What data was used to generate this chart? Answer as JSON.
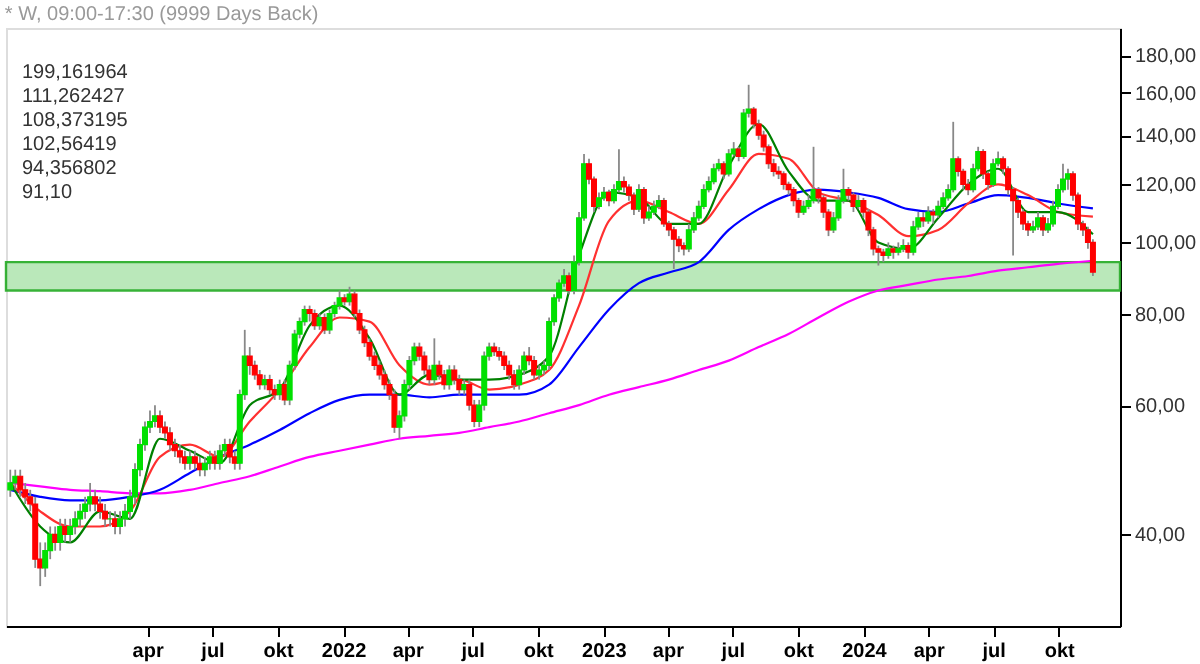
{
  "chart_data": {
    "type": "candlestick",
    "title": "* W, 09:00-17:30 (9999 Days Back)",
    "log": true,
    "grid": false,
    "ylim": [
      30,
      196
    ],
    "yticks": [
      {
        "value": 40,
        "label": "40,00"
      },
      {
        "value": 60,
        "label": "60,00"
      },
      {
        "value": 80,
        "label": "80,00"
      },
      {
        "value": 100,
        "label": "100,00"
      },
      {
        "value": 120,
        "label": "120,00"
      },
      {
        "value": 140,
        "label": "140,00"
      },
      {
        "value": 160,
        "label": "160,00"
      },
      {
        "value": 180,
        "label": "180,00"
      }
    ],
    "xlim": [
      "2020-09-15",
      "2024-12-26"
    ],
    "xticks": [
      {
        "value": "2021-04-01",
        "label": "apr"
      },
      {
        "value": "2021-07-01",
        "label": "jul"
      },
      {
        "value": "2021-10-01",
        "label": "okt"
      },
      {
        "value": "2022-01-01",
        "label": "2022"
      },
      {
        "value": "2022-04-01",
        "label": "apr"
      },
      {
        "value": "2022-07-01",
        "label": "jul"
      },
      {
        "value": "2022-10-01",
        "label": "okt"
      },
      {
        "value": "2023-01-01",
        "label": "2023"
      },
      {
        "value": "2023-04-01",
        "label": "apr"
      },
      {
        "value": "2023-07-01",
        "label": "jul"
      },
      {
        "value": "2023-10-01",
        "label": "okt"
      },
      {
        "value": "2024-01-01",
        "label": "2024"
      },
      {
        "value": "2024-04-01",
        "label": "apr"
      },
      {
        "value": "2024-07-01",
        "label": "jul"
      },
      {
        "value": "2024-10-01",
        "label": "okt"
      }
    ],
    "colors": [
      "#00e000",
      "#00e000",
      "#ff0000",
      "#ff0000",
      "#ff0000",
      "#ff0000",
      "#ff0000",
      "#00e000",
      "#00e000",
      "#ff0000",
      "#00e000",
      "#ff0000",
      "#00e000",
      "#00e000",
      "#00e000",
      "#00e000",
      "#00e000",
      "#ff0000",
      "#ff0000",
      "#ff0000",
      "#00e000",
      "#ff0000",
      "#00e000",
      "#00e000",
      "#00e000",
      "#00e000",
      "#00e000",
      "#00e000",
      "#00e000",
      "#00e000",
      "#ff0000",
      "#ff0000",
      "#ff0000",
      "#ff0000",
      "#ff0000",
      "#ff0000",
      "#00e000",
      "#ff0000",
      "#ff0000",
      "#00e000",
      "#00e000",
      "#ff0000",
      "#00e000",
      "#00e000",
      "#ff0000",
      "#ff0000",
      "#00e000",
      "#00e000",
      "#ff0000",
      "#ff0000",
      "#ff0000",
      "#00e000",
      "#ff0000",
      "#ff0000",
      "#00e000",
      "#ff0000",
      "#00e000",
      "#00e000",
      "#00e000",
      "#00e000",
      "#ff0000",
      "#ff0000",
      "#00e000",
      "#ff0000",
      "#00e000",
      "#00e000",
      "#00e000",
      "#ff0000",
      "#00e000",
      "#ff0000",
      "#ff0000",
      "#ff0000",
      "#ff0000",
      "#ff0000",
      "#ff0000",
      "#ff0000",
      "#ff0000",
      "#ff0000",
      "#00e000",
      "#00e000",
      "#00e000",
      "#00e000",
      "#ff0000",
      "#ff0000",
      "#ff0000",
      "#00e000",
      "#ff0000",
      "#ff0000",
      "#00e000",
      "#ff0000",
      "#ff0000",
      "#00e000",
      "#ff0000",
      "#ff0000",
      "#00e000",
      "#00e000",
      "#00e000",
      "#ff0000",
      "#ff0000",
      "#ff0000",
      "#ff0000",
      "#ff0000",
      "#00e000",
      "#00e000",
      "#ff0000",
      "#ff0000",
      "#00e000",
      "#00e000",
      "#00e000",
      "#00e000",
      "#00e000",
      "#00e000",
      "#ff0000",
      "#00e000",
      "#00e000",
      "#00e000",
      "#ff0000",
      "#ff0000",
      "#00e000",
      "#00e000",
      "#ff0000",
      "#00e000",
      "#00e000",
      "#ff0000",
      "#ff0000",
      "#ff0000",
      "#00e000",
      "#ff0000",
      "#00e000",
      "#00e000",
      "#00e000",
      "#ff0000",
      "#ff0000",
      "#ff0000",
      "#ff0000",
      "#ff0000",
      "#00e000",
      "#00e000",
      "#00e000",
      "#00e000",
      "#00e000",
      "#00e000",
      "#00e000",
      "#ff0000",
      "#00e000",
      "#00e000",
      "#ff0000",
      "#00e000",
      "#00e000",
      "#ff0000",
      "#ff0000",
      "#ff0000",
      "#ff0000",
      "#ff0000",
      "#ff0000",
      "#ff0000",
      "#ff0000",
      "#ff0000",
      "#ff0000",
      "#00e000",
      "#00e000",
      "#00e000",
      "#ff0000",
      "#ff0000",
      "#ff0000",
      "#00e000",
      "#00e000",
      "#00e000",
      "#ff0000",
      "#ff0000",
      "#00e000",
      "#ff0000",
      "#ff0000",
      "#ff0000",
      "#ff0000",
      "#ff0000",
      "#00e000",
      "#ff0000",
      "#00e000",
      "#00e000",
      "#ff0000",
      "#00e000",
      "#00e000",
      "#ff0000",
      "#00e000",
      "#ff0000",
      "#00e000",
      "#00e000",
      "#00e000",
      "#00e000",
      "#ff0000",
      "#ff0000",
      "#ff0000",
      "#00e000",
      "#00e000",
      "#ff0000",
      "#ff0000",
      "#00e000",
      "#00e000",
      "#ff0000",
      "#ff0000",
      "#ff0000",
      "#ff0000",
      "#ff0000",
      "#ff0000",
      "#00e000",
      "#00e000",
      "#ff0000",
      "#00e000",
      "#00e000",
      "#00e000",
      "#00e000",
      "#00e000",
      "#ff0000",
      "#ff0000",
      "#ff0000",
      "#ff0000",
      "#ff0000"
    ],
    "bands": [
      {
        "axis": "y",
        "from": 86,
        "to": 94,
        "color": "#b3e6b3"
      }
    ],
    "annotations": [
      "199,161964",
      "111,262427",
      "108,373195",
      "102,56419",
      "94,356802",
      "91,10"
    ],
    "x": [
      "2020-09-21",
      "2020-09-28",
      "2020-10-05",
      "2020-10-12",
      "2020-10-19",
      "2020-10-26",
      "2020-11-02",
      "2020-11-09",
      "2020-11-16",
      "2020-11-23",
      "2020-11-30",
      "2020-12-07",
      "2020-12-14",
      "2020-12-21",
      "2020-12-28",
      "2021-01-04",
      "2021-01-11",
      "2021-01-18",
      "2021-01-25",
      "2021-02-01",
      "2021-02-08",
      "2021-02-15",
      "2021-02-22",
      "2021-03-01",
      "2021-03-08",
      "2021-03-15",
      "2021-03-22",
      "2021-03-29",
      "2021-04-05",
      "2021-04-12",
      "2021-04-19",
      "2021-04-26",
      "2021-05-03",
      "2021-05-10",
      "2021-05-17",
      "2021-05-24",
      "2021-05-31",
      "2021-06-07",
      "2021-06-14",
      "2021-06-21",
      "2021-06-28",
      "2021-07-05",
      "2021-07-12",
      "2021-07-19",
      "2021-07-26",
      "2021-08-02",
      "2021-08-09",
      "2021-08-16",
      "2021-08-23",
      "2021-08-30",
      "2021-09-06",
      "2021-09-13",
      "2021-09-20",
      "2021-09-27",
      "2021-10-04",
      "2021-10-11",
      "2021-10-18",
      "2021-10-25",
      "2021-11-01",
      "2021-11-08",
      "2021-11-15",
      "2021-11-22",
      "2021-11-29",
      "2021-12-06",
      "2021-12-13",
      "2021-12-20",
      "2021-12-27",
      "2022-01-03",
      "2022-01-10",
      "2022-01-17",
      "2022-01-24",
      "2022-01-31",
      "2022-02-07",
      "2022-02-14",
      "2022-02-21",
      "2022-02-28",
      "2022-03-07",
      "2022-03-14",
      "2022-03-21",
      "2022-03-28",
      "2022-04-04",
      "2022-04-11",
      "2022-04-18",
      "2022-04-25",
      "2022-05-02",
      "2022-05-09",
      "2022-05-16",
      "2022-05-23",
      "2022-05-30",
      "2022-06-06",
      "2022-06-13",
      "2022-06-20",
      "2022-06-27",
      "2022-07-04",
      "2022-07-11",
      "2022-07-18",
      "2022-07-25",
      "2022-08-01",
      "2022-08-08",
      "2022-08-15",
      "2022-08-22",
      "2022-08-29",
      "2022-09-05",
      "2022-09-12",
      "2022-09-19",
      "2022-09-26",
      "2022-10-03",
      "2022-10-10",
      "2022-10-17",
      "2022-10-24",
      "2022-10-31",
      "2022-11-07",
      "2022-11-14",
      "2022-11-21",
      "2022-11-28",
      "2022-12-05",
      "2022-12-12",
      "2022-12-19",
      "2022-12-26",
      "2023-01-02",
      "2023-01-09",
      "2023-01-16",
      "2023-01-23",
      "2023-01-30",
      "2023-02-06",
      "2023-02-13",
      "2023-02-20",
      "2023-02-27",
      "2023-03-06",
      "2023-03-13",
      "2023-03-20",
      "2023-03-27",
      "2023-04-03",
      "2023-04-10",
      "2023-04-17",
      "2023-04-24",
      "2023-05-01",
      "2023-05-08",
      "2023-05-15",
      "2023-05-22",
      "2023-05-29",
      "2023-06-05",
      "2023-06-12",
      "2023-06-19",
      "2023-06-26",
      "2023-07-03",
      "2023-07-10",
      "2023-07-17",
      "2023-07-24",
      "2023-07-31",
      "2023-08-07",
      "2023-08-14",
      "2023-08-21",
      "2023-08-28",
      "2023-09-04",
      "2023-09-11",
      "2023-09-18",
      "2023-09-25",
      "2023-10-02",
      "2023-10-09",
      "2023-10-16",
      "2023-10-23",
      "2023-10-30",
      "2023-11-06",
      "2023-11-13",
      "2023-11-20",
      "2023-11-27",
      "2023-12-04",
      "2023-12-11",
      "2023-12-18",
      "2023-12-25",
      "2024-01-01",
      "2024-01-08",
      "2024-01-15",
      "2024-01-22",
      "2024-01-29",
      "2024-02-05",
      "2024-02-12",
      "2024-02-19",
      "2024-02-26",
      "2024-03-04",
      "2024-03-11",
      "2024-03-18",
      "2024-03-25",
      "2024-04-01",
      "2024-04-08",
      "2024-04-15",
      "2024-04-22",
      "2024-04-29",
      "2024-05-06",
      "2024-05-13",
      "2024-05-20",
      "2024-05-27",
      "2024-06-03",
      "2024-06-10",
      "2024-06-17",
      "2024-06-24",
      "2024-07-01",
      "2024-07-08",
      "2024-07-15",
      "2024-07-22",
      "2024-07-29",
      "2024-08-05",
      "2024-08-12",
      "2024-08-19",
      "2024-08-26",
      "2024-09-02",
      "2024-09-09",
      "2024-09-16",
      "2024-09-23",
      "2024-09-30",
      "2024-10-07",
      "2024-10-14",
      "2024-10-21",
      "2024-10-28",
      "2024-11-04",
      "2024-11-11",
      "2024-11-18"
    ],
    "ohlc": [
      [
        46,
        49,
        45,
        47
      ],
      [
        47,
        49,
        46,
        48
      ],
      [
        48,
        49,
        45,
        46
      ],
      [
        46,
        47,
        44,
        45
      ],
      [
        45,
        46,
        43,
        44
      ],
      [
        44,
        45,
        36,
        37
      ],
      [
        37,
        39,
        34,
        36
      ],
      [
        36,
        39,
        35,
        38
      ],
      [
        38,
        41,
        37,
        40
      ],
      [
        40,
        41,
        38,
        39
      ],
      [
        39,
        42,
        38,
        41
      ],
      [
        41,
        42,
        39,
        40
      ],
      [
        40,
        42,
        39,
        41
      ],
      [
        41,
        43,
        40,
        42
      ],
      [
        42,
        44,
        41,
        43
      ],
      [
        43,
        45,
        42,
        44
      ],
      [
        44,
        47,
        43,
        45
      ],
      [
        45,
        46,
        43,
        44
      ],
      [
        44,
        45,
        42,
        43
      ],
      [
        43,
        44,
        41,
        42
      ],
      [
        42,
        43,
        41,
        42
      ],
      [
        42,
        43,
        40,
        41
      ],
      [
        41,
        43,
        40,
        42
      ],
      [
        42,
        44,
        41,
        43
      ],
      [
        43,
        46,
        42,
        45
      ],
      [
        45,
        50,
        44,
        49
      ],
      [
        49,
        54,
        48,
        53
      ],
      [
        53,
        57,
        52,
        56
      ],
      [
        56,
        59,
        55,
        57
      ],
      [
        57,
        60,
        56,
        58
      ],
      [
        58,
        59,
        55,
        56
      ],
      [
        56,
        57,
        54,
        55
      ],
      [
        55,
        56,
        52,
        53
      ],
      [
        53,
        54,
        51,
        52
      ],
      [
        52,
        53,
        50,
        51
      ],
      [
        51,
        52,
        49,
        50
      ],
      [
        50,
        52,
        49,
        51
      ],
      [
        51,
        52,
        49,
        50
      ],
      [
        50,
        51,
        48,
        49
      ],
      [
        49,
        51,
        48,
        50
      ],
      [
        50,
        52,
        49,
        51
      ],
      [
        51,
        52,
        49,
        50
      ],
      [
        50,
        53,
        49,
        52
      ],
      [
        52,
        54,
        51,
        53
      ],
      [
        53,
        54,
        50,
        51
      ],
      [
        51,
        52,
        49,
        50
      ],
      [
        50,
        63,
        49,
        62
      ],
      [
        62,
        76,
        61,
        70
      ],
      [
        70,
        72,
        66,
        68
      ],
      [
        68,
        69,
        65,
        66
      ],
      [
        66,
        67,
        63,
        64
      ],
      [
        64,
        66,
        63,
        65
      ],
      [
        65,
        66,
        62,
        63
      ],
      [
        63,
        64,
        61,
        62
      ],
      [
        62,
        65,
        61,
        64
      ],
      [
        64,
        65,
        60,
        61
      ],
      [
        61,
        69,
        60,
        68
      ],
      [
        68,
        76,
        67,
        75
      ],
      [
        75,
        79,
        74,
        78
      ],
      [
        78,
        82,
        77,
        81
      ],
      [
        81,
        82,
        78,
        80
      ],
      [
        80,
        81,
        76,
        77
      ],
      [
        77,
        80,
        76,
        79
      ],
      [
        79,
        80,
        75,
        76
      ],
      [
        76,
        81,
        75,
        80
      ],
      [
        80,
        83,
        79,
        82
      ],
      [
        82,
        86,
        81,
        84
      ],
      [
        84,
        85,
        82,
        83
      ],
      [
        83,
        87,
        82,
        85
      ],
      [
        85,
        86,
        79,
        80
      ],
      [
        80,
        81,
        75,
        76
      ],
      [
        76,
        77,
        72,
        73
      ],
      [
        73,
        74,
        69,
        70
      ],
      [
        70,
        71,
        67,
        68
      ],
      [
        68,
        69,
        65,
        66
      ],
      [
        66,
        67,
        63,
        64
      ],
      [
        64,
        65,
        61,
        62
      ],
      [
        62,
        63,
        55,
        56
      ],
      [
        56,
        59,
        54,
        58
      ],
      [
        58,
        65,
        57,
        64
      ],
      [
        64,
        70,
        63,
        69
      ],
      [
        69,
        73,
        68,
        72
      ],
      [
        72,
        73,
        69,
        70
      ],
      [
        70,
        71,
        66,
        67
      ],
      [
        67,
        68,
        64,
        65
      ],
      [
        65,
        74,
        64,
        68
      ],
      [
        68,
        69,
        65,
        66
      ],
      [
        66,
        67,
        63,
        64
      ],
      [
        64,
        68,
        63,
        67
      ],
      [
        67,
        68,
        64,
        65
      ],
      [
        65,
        66,
        62,
        63
      ],
      [
        63,
        65,
        62,
        64
      ],
      [
        64,
        65,
        59,
        60
      ],
      [
        60,
        61,
        56,
        57
      ],
      [
        57,
        61,
        56,
        60
      ],
      [
        60,
        71,
        59,
        70
      ],
      [
        70,
        73,
        69,
        72
      ],
      [
        72,
        73,
        70,
        71
      ],
      [
        71,
        72,
        69,
        70
      ],
      [
        70,
        71,
        67,
        68
      ],
      [
        68,
        69,
        65,
        66
      ],
      [
        66,
        67,
        63,
        64
      ],
      [
        64,
        68,
        63,
        67
      ],
      [
        67,
        71,
        66,
        70
      ],
      [
        70,
        72,
        68,
        69
      ],
      [
        69,
        70,
        65,
        66
      ],
      [
        66,
        68,
        65,
        67
      ],
      [
        67,
        69,
        66,
        68
      ],
      [
        68,
        79,
        67,
        78
      ],
      [
        78,
        85,
        77,
        84
      ],
      [
        84,
        89,
        83,
        88
      ],
      [
        88,
        92,
        87,
        90
      ],
      [
        90,
        91,
        85,
        86
      ],
      [
        86,
        96,
        85,
        94
      ],
      [
        94,
        110,
        93,
        108
      ],
      [
        108,
        132,
        107,
        128
      ],
      [
        128,
        130,
        120,
        122
      ],
      [
        122,
        123,
        110,
        112
      ],
      [
        112,
        117,
        111,
        115
      ],
      [
        115,
        119,
        114,
        117
      ],
      [
        117,
        118,
        112,
        114
      ],
      [
        114,
        120,
        113,
        118
      ],
      [
        118,
        134,
        117,
        121
      ],
      [
        121,
        123,
        117,
        119
      ],
      [
        119,
        120,
        114,
        116
      ],
      [
        116,
        117,
        109,
        111
      ],
      [
        111,
        120,
        110,
        118
      ],
      [
        118,
        119,
        106,
        108
      ],
      [
        108,
        112,
        107,
        110
      ],
      [
        110,
        114,
        109,
        112
      ],
      [
        112,
        116,
        111,
        114
      ],
      [
        114,
        115,
        105,
        106
      ],
      [
        106,
        107,
        102,
        104
      ],
      [
        104,
        105,
        92,
        101
      ],
      [
        101,
        102,
        97,
        99
      ],
      [
        99,
        100,
        96,
        98
      ],
      [
        98,
        106,
        97,
        104
      ],
      [
        104,
        110,
        103,
        108
      ],
      [
        108,
        114,
        107,
        112
      ],
      [
        112,
        120,
        111,
        118
      ],
      [
        118,
        123,
        117,
        121
      ],
      [
        121,
        128,
        120,
        126
      ],
      [
        126,
        130,
        125,
        128
      ],
      [
        128,
        129,
        122,
        124
      ],
      [
        124,
        134,
        123,
        132
      ],
      [
        132,
        137,
        131,
        134
      ],
      [
        134,
        135,
        129,
        131
      ],
      [
        131,
        152,
        130,
        150
      ],
      [
        150,
        164,
        148,
        152
      ],
      [
        152,
        153,
        143,
        145
      ],
      [
        145,
        147,
        138,
        140
      ],
      [
        140,
        142,
        133,
        135
      ],
      [
        135,
        136,
        126,
        128
      ],
      [
        128,
        130,
        123,
        125
      ],
      [
        125,
        127,
        122,
        124
      ],
      [
        124,
        125,
        118,
        120
      ],
      [
        120,
        121,
        116,
        118
      ],
      [
        118,
        119,
        112,
        114
      ],
      [
        114,
        115,
        108,
        110
      ],
      [
        110,
        114,
        109,
        112
      ],
      [
        112,
        116,
        111,
        114
      ],
      [
        114,
        135,
        113,
        118
      ],
      [
        118,
        119,
        113,
        115
      ],
      [
        115,
        116,
        108,
        110
      ],
      [
        110,
        111,
        102,
        104
      ],
      [
        104,
        110,
        103,
        108
      ],
      [
        108,
        116,
        107,
        114
      ],
      [
        114,
        126,
        113,
        118
      ],
      [
        118,
        119,
        114,
        116
      ],
      [
        116,
        117,
        110,
        112
      ],
      [
        112,
        116,
        111,
        114
      ],
      [
        114,
        115,
        108,
        110
      ],
      [
        110,
        111,
        102,
        104
      ],
      [
        104,
        105,
        96,
        98
      ],
      [
        98,
        99,
        93,
        97
      ],
      [
        97,
        98,
        94,
        96
      ],
      [
        96,
        100,
        95,
        98
      ],
      [
        98,
        99,
        95,
        97
      ],
      [
        97,
        100,
        96,
        98
      ],
      [
        98,
        101,
        97,
        99
      ],
      [
        99,
        100,
        95,
        97
      ],
      [
        97,
        107,
        96,
        105
      ],
      [
        105,
        110,
        104,
        108
      ],
      [
        108,
        110,
        105,
        107
      ],
      [
        107,
        112,
        106,
        110
      ],
      [
        110,
        111,
        106,
        109
      ],
      [
        109,
        114,
        108,
        112
      ],
      [
        112,
        117,
        111,
        115
      ],
      [
        115,
        120,
        114,
        118
      ],
      [
        118,
        146,
        117,
        130
      ],
      [
        130,
        131,
        123,
        125
      ],
      [
        125,
        126,
        118,
        120
      ],
      [
        120,
        122,
        116,
        118
      ],
      [
        118,
        128,
        117,
        126
      ],
      [
        126,
        135,
        125,
        133
      ],
      [
        133,
        134,
        122,
        124
      ],
      [
        124,
        125,
        118,
        120
      ],
      [
        120,
        130,
        119,
        128
      ],
      [
        128,
        133,
        127,
        130
      ],
      [
        130,
        131,
        124,
        126
      ],
      [
        126,
        127,
        116,
        118
      ],
      [
        118,
        119,
        96,
        114
      ],
      [
        114,
        115,
        108,
        110
      ],
      [
        110,
        111,
        104,
        106
      ],
      [
        106,
        107,
        102,
        104
      ],
      [
        104,
        107,
        103,
        105
      ],
      [
        105,
        110,
        104,
        108
      ],
      [
        108,
        109,
        102,
        104
      ],
      [
        104,
        108,
        103,
        106
      ],
      [
        106,
        114,
        105,
        112
      ],
      [
        112,
        120,
        111,
        118
      ],
      [
        118,
        128,
        117,
        122
      ],
      [
        122,
        126,
        118,
        124
      ],
      [
        124,
        125,
        114,
        116
      ],
      [
        116,
        117,
        104,
        106
      ],
      [
        106,
        107,
        102,
        104
      ],
      [
        104,
        105,
        98,
        100
      ],
      [
        100,
        101,
        90,
        91.1
      ]
    ],
    "series": [
      {
        "type": "line",
        "color": "#ff00ff",
        "x": [
          "2020-09-21",
          "2020-11-02",
          "2020-12-14",
          "2021-01-25",
          "2021-03-08",
          "2021-04-19",
          "2021-05-31",
          "2021-07-12",
          "2021-08-23",
          "2021-10-04",
          "2021-11-15",
          "2021-12-27",
          "2022-02-07",
          "2022-03-21",
          "2022-05-02",
          "2022-06-13",
          "2022-07-25",
          "2022-09-05",
          "2022-10-17",
          "2022-11-28",
          "2023-01-09",
          "2023-02-20",
          "2023-04-03",
          "2023-05-15",
          "2023-06-26",
          "2023-08-07",
          "2023-09-18",
          "2023-10-30",
          "2023-12-11",
          "2024-01-22",
          "2024-03-04",
          "2024-04-15",
          "2024-05-27",
          "2024-07-08",
          "2024-08-19",
          "2024-09-30",
          "2024-11-18"
        ],
        "values": [
          47,
          46.5,
          46,
          45.8,
          45.5,
          45.5,
          46,
          47,
          48,
          49.5,
          51,
          52,
          53,
          54,
          54.5,
          55,
          56,
          57,
          58.5,
          60,
          62,
          63.5,
          65,
          67,
          69,
          72,
          75,
          79,
          83,
          86,
          87.5,
          89,
          90,
          91.5,
          92.5,
          93.5,
          94.4
        ]
      },
      {
        "type": "line",
        "color": "#0000ff",
        "x": [
          "2020-09-21",
          "2020-11-02",
          "2020-12-14",
          "2021-01-25",
          "2021-03-08",
          "2021-04-19",
          "2021-05-31",
          "2021-07-12",
          "2021-08-23",
          "2021-10-04",
          "2021-11-15",
          "2021-12-27",
          "2022-02-07",
          "2022-03-21",
          "2022-05-02",
          "2022-06-13",
          "2022-07-25",
          "2022-09-05",
          "2022-10-17",
          "2022-11-28",
          "2023-01-09",
          "2023-02-20",
          "2023-04-03",
          "2023-05-15",
          "2023-06-26",
          "2023-08-07",
          "2023-09-18",
          "2023-10-30",
          "2023-12-11",
          "2024-01-22",
          "2024-03-04",
          "2024-04-15",
          "2024-05-27",
          "2024-07-08",
          "2024-08-19",
          "2024-09-30",
          "2024-11-18"
        ],
        "values": [
          46,
          45,
          44.5,
          44.5,
          45,
          46,
          48.5,
          51,
          53,
          55.5,
          58.5,
          61,
          62,
          62,
          61.5,
          62,
          62,
          62,
          64,
          72,
          81,
          88,
          91,
          94,
          104,
          111,
          116,
          118,
          117,
          115,
          111,
          110,
          113,
          116,
          115,
          113,
          111.3
        ]
      },
      {
        "type": "line",
        "color": "#ff3030",
        "x": [
          "2020-09-21",
          "2020-11-02",
          "2020-12-14",
          "2021-01-25",
          "2021-03-08",
          "2021-04-19",
          "2021-05-31",
          "2021-07-12",
          "2021-08-23",
          "2021-10-04",
          "2021-11-15",
          "2021-12-27",
          "2022-02-07",
          "2022-03-21",
          "2022-05-02",
          "2022-06-13",
          "2022-07-25",
          "2022-09-05",
          "2022-10-17",
          "2022-11-28",
          "2023-01-09",
          "2023-02-20",
          "2023-04-03",
          "2023-05-15",
          "2023-06-26",
          "2023-08-07",
          "2023-09-18",
          "2023-10-30",
          "2023-12-11",
          "2024-01-22",
          "2024-03-04",
          "2024-04-15",
          "2024-05-27",
          "2024-07-08",
          "2024-08-19",
          "2024-09-30",
          "2024-11-18"
        ],
        "values": [
          47,
          43,
          41,
          41,
          43,
          51,
          53,
          51,
          57,
          63,
          72,
          79,
          78,
          68,
          64,
          65,
          63,
          64,
          67,
          82,
          107,
          114,
          110,
          106,
          118,
          132,
          130,
          117,
          114,
          109,
          102,
          104,
          113,
          120,
          116,
          110,
          108.4
        ]
      },
      {
        "type": "line",
        "color": "#008000",
        "x": [
          "2020-09-21",
          "2020-11-02",
          "2020-12-14",
          "2021-01-25",
          "2021-03-08",
          "2021-04-19",
          "2021-05-31",
          "2021-07-12",
          "2021-08-23",
          "2021-10-04",
          "2021-11-15",
          "2021-12-27",
          "2022-02-07",
          "2022-03-21",
          "2022-05-02",
          "2022-06-13",
          "2022-07-25",
          "2022-09-05",
          "2022-10-17",
          "2022-11-28",
          "2023-01-09",
          "2023-02-20",
          "2023-04-03",
          "2023-05-15",
          "2023-06-26",
          "2023-08-07",
          "2023-09-18",
          "2023-10-30",
          "2023-12-11",
          "2024-01-22",
          "2024-03-04",
          "2024-04-15",
          "2024-05-27",
          "2024-07-08",
          "2024-08-19",
          "2024-09-30",
          "2024-11-18"
        ],
        "values": [
          47,
          41,
          39,
          43,
          42,
          54,
          52,
          50,
          60,
          63,
          77,
          82,
          74,
          62,
          66,
          65,
          65,
          66,
          70,
          96,
          117,
          115,
          106,
          106,
          127,
          145,
          125,
          114,
          114,
          100,
          98,
          108,
          120,
          126,
          110,
          110,
          102.6
        ]
      }
    ]
  }
}
